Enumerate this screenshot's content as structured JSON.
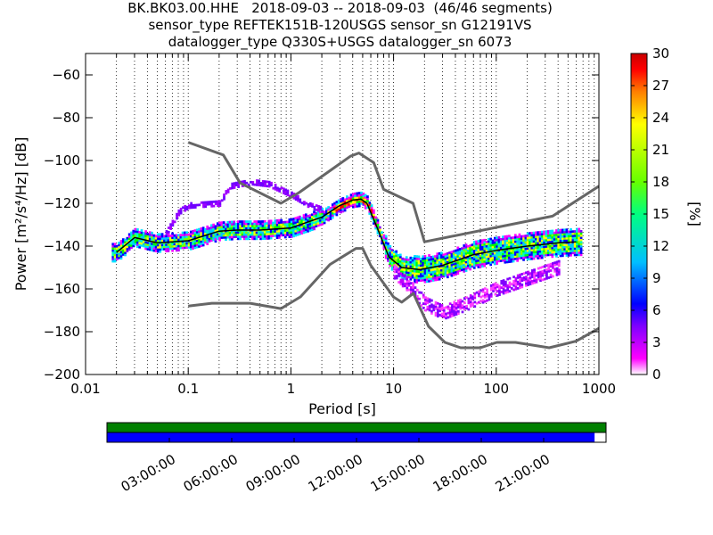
{
  "header": {
    "line1": "BK.BK03.00.HHE   2018-09-03 -- 2018-09-03  (46/46 segments)",
    "line2": "sensor_type REFTEK151B-120USGS sensor_sn G12191VS",
    "line3": "datalogger_type Q330S+USGS datalogger_sn 6073"
  },
  "chart_data": [
    {
      "type": "heatmap",
      "title": "BK.BK03.00.HHE   2018-09-03 -- 2018-09-03  (46/46 segments)",
      "xlabel": "Period [s]",
      "ylabel": "Power [m²/s⁴/Hz] [dB]",
      "xscale": "log",
      "xlim": [
        0.01,
        1000
      ],
      "ylim": [
        -200,
        -50
      ],
      "x_ticks": [
        0.01,
        0.1,
        1,
        10,
        100,
        1000
      ],
      "x_tick_labels": [
        "0.01",
        "0.1",
        "1",
        "10",
        "100",
        "1000"
      ],
      "y_ticks": [
        -200,
        -180,
        -160,
        -140,
        -120,
        -100,
        -80,
        -60
      ],
      "y_tick_labels": [
        "−200",
        "−180",
        "−160",
        "−140",
        "−120",
        "−100",
        "−80",
        "−60"
      ],
      "grid": "dotted vertical lines at period decades",
      "colorbar": {
        "label": "[%]",
        "range": [
          0,
          30
        ],
        "ticks": [
          0,
          3,
          6,
          9,
          12,
          15,
          18,
          21,
          24,
          27,
          30
        ],
        "colormap": [
          "#ffffff",
          "#ff00ff",
          "#7f00ff",
          "#0000ff",
          "#00bfff",
          "#00ff80",
          "#66ff00",
          "#ffff00",
          "#ff8000",
          "#ff0000",
          "#c80000"
        ]
      },
      "series": [
        {
          "name": "NHNM",
          "color": "#666666",
          "x": [
            0.1,
            0.22,
            0.32,
            0.8,
            1.2,
            3.8,
            4.6,
            6.4,
            8.0,
            15.5,
            20,
            354,
            1000
          ],
          "y": [
            -91.5,
            -97.4,
            -110.5,
            -120.0,
            -115.0,
            -98.0,
            -96.5,
            -101.0,
            -113.5,
            -120.0,
            -138.0,
            -126.0,
            -112.0
          ]
        },
        {
          "name": "NLNM",
          "color": "#666666",
          "x": [
            0.1,
            0.17,
            0.4,
            0.8,
            1.24,
            2.4,
            4.3,
            5.0,
            6.0,
            10.0,
            12.0,
            15.6,
            21.9,
            31.6,
            45,
            70,
            101,
            154,
            328,
            600,
            1000
          ],
          "y": [
            -168.0,
            -166.7,
            -166.7,
            -169.2,
            -163.7,
            -148.6,
            -141.1,
            -141.1,
            -149.0,
            -163.8,
            -166.2,
            -162.1,
            -177.5,
            -185.0,
            -187.5,
            -187.5,
            -185.0,
            -185.0,
            -187.5,
            -184.4,
            -178.4
          ]
        },
        {
          "name": "mode",
          "color": "#000000",
          "x": [
            0.02,
            0.03,
            0.05,
            0.1,
            0.2,
            0.3,
            0.5,
            1.0,
            2.0,
            3.0,
            4.0,
            4.8,
            5.5,
            7.0,
            9.0,
            12.0,
            18.0,
            30.0,
            60.0,
            100.0,
            200.0,
            400.0,
            600.0
          ],
          "y": [
            -143.0,
            -136.0,
            -138.5,
            -137.5,
            -133.0,
            -132.5,
            -132.5,
            -131.5,
            -126.5,
            -121.0,
            -118.5,
            -118.0,
            -120.0,
            -132.0,
            -145.0,
            -150.0,
            -151.0,
            -149.0,
            -144.0,
            -142.0,
            -140.0,
            -138.5,
            -138.0
          ]
        },
        {
          "name": "upper outliers",
          "color": "#8000ff",
          "x": [
            0.06,
            0.08,
            0.1,
            0.2,
            0.25,
            0.4,
            0.6,
            1.0,
            1.5,
            2.0
          ],
          "y": [
            -134.0,
            -124.0,
            -121.0,
            -120.0,
            -112.0,
            -110.0,
            -111.0,
            -116.0,
            -121.0,
            -123.0
          ]
        },
        {
          "name": "lower outliers",
          "color": "#ff00ff",
          "x": [
            10.0,
            15.0,
            20.0,
            30.0,
            50.0,
            100.0,
            200.0,
            400.0
          ],
          "y": [
            -152.0,
            -160.0,
            -167.0,
            -171.0,
            -167.0,
            -160.0,
            -155.0,
            -150.0
          ]
        }
      ]
    },
    {
      "type": "bar",
      "name": "data-availability",
      "x_tick_labels": [
        "03:00:00",
        "06:00:00",
        "09:00:00",
        "12:00:00",
        "15:00:00",
        "18:00:00",
        "21:00:00"
      ],
      "rows": [
        {
          "color": "#008000",
          "coverage": [
            0.0,
            1.0
          ]
        },
        {
          "color": "#0000ff",
          "coverage": [
            0.0,
            0.977
          ]
        }
      ]
    }
  ]
}
